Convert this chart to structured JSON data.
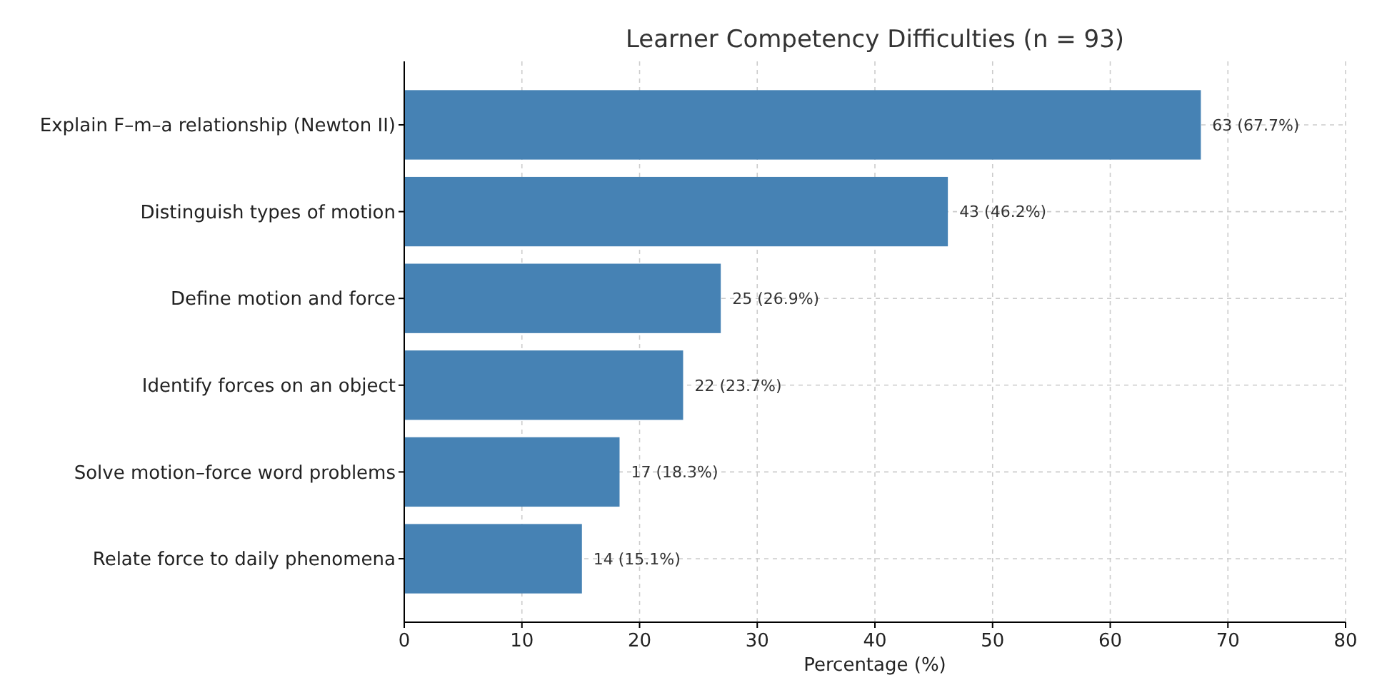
{
  "chart_data": {
    "type": "bar",
    "orientation": "horizontal",
    "title": "Learner Competency Difficulties (n = 93)",
    "xlabel": "Percentage (%)",
    "categories": [
      "Explain F–m–a relationship (Newton II)",
      "Distinguish types of motion",
      "Define motion and force",
      "Identify forces on an object",
      "Solve motion–force word problems",
      "Relate force to daily phenomena"
    ],
    "values": [
      67.7,
      46.2,
      26.9,
      23.7,
      18.3,
      15.1
    ],
    "value_labels": [
      "63 (67.7%)",
      "43 (46.2%)",
      "25 (26.9%)",
      "22 (23.7%)",
      "17 (18.3%)",
      "14 (15.1%)"
    ],
    "color": "#4682b4",
    "xlim": [
      0,
      80
    ],
    "xticks": [
      0,
      10,
      20,
      30,
      40,
      50,
      60,
      70,
      80
    ],
    "grid": true
  }
}
